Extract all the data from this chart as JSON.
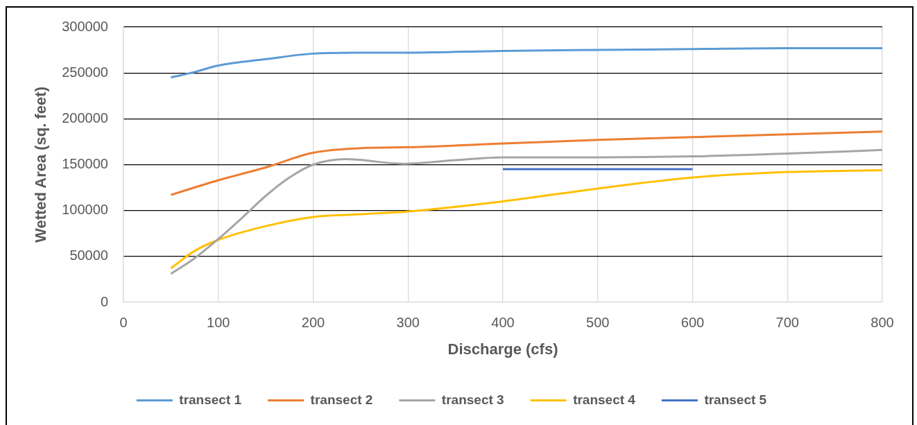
{
  "chart_data": {
    "type": "line",
    "xlabel": "Discharge (cfs)",
    "ylabel": "Wetted Area (sq. feet)",
    "xlim": [
      0,
      800
    ],
    "xticks": [
      0,
      100,
      200,
      300,
      400,
      500,
      600,
      700,
      800
    ],
    "ylim": [
      0,
      300000
    ],
    "yticks": [
      0,
      50000,
      100000,
      150000,
      200000,
      250000,
      300000
    ],
    "grid": true,
    "legend": "bottom",
    "marker": "none",
    "line_style": "solid",
    "series": [
      {
        "name": "transect 1",
        "color": "#5b9bd5",
        "x": [
          50,
          75,
          100,
          150,
          200,
          250,
          300,
          400,
          500,
          600,
          700,
          800
        ],
        "values": [
          245000,
          251000,
          258000,
          265000,
          271000,
          272000,
          272000,
          274000,
          275000,
          276000,
          277000,
          277000
        ]
      },
      {
        "name": "transect 2",
        "color": "#ed7d31",
        "x": [
          50,
          100,
          150,
          200,
          250,
          300,
          400,
          500,
          600,
          700,
          800
        ],
        "values": [
          117000,
          133000,
          147000,
          163000,
          168000,
          169000,
          173000,
          177000,
          180000,
          183000,
          186000
        ]
      },
      {
        "name": "transect 3",
        "color": "#a5a5a5",
        "x": [
          50,
          75,
          100,
          125,
          150,
          175,
          200,
          235,
          295,
          350,
          400,
          500,
          600,
          700,
          800
        ],
        "values": [
          31000,
          48000,
          69000,
          92000,
          116000,
          136000,
          150000,
          156000,
          151000,
          155000,
          158000,
          158000,
          159000,
          162000,
          166000
        ]
      },
      {
        "name": "transect 4",
        "color": "#ffc000",
        "x": [
          50,
          75,
          100,
          150,
          200,
          250,
          300,
          400,
          500,
          600,
          700,
          800
        ],
        "values": [
          37000,
          56000,
          68000,
          83000,
          93000,
          96000,
          99000,
          110000,
          124000,
          136000,
          142000,
          144000
        ]
      },
      {
        "name": "transect 5",
        "color": "#4472c4",
        "x": [
          400,
          600
        ],
        "values": [
          145000,
          145000
        ]
      }
    ]
  }
}
